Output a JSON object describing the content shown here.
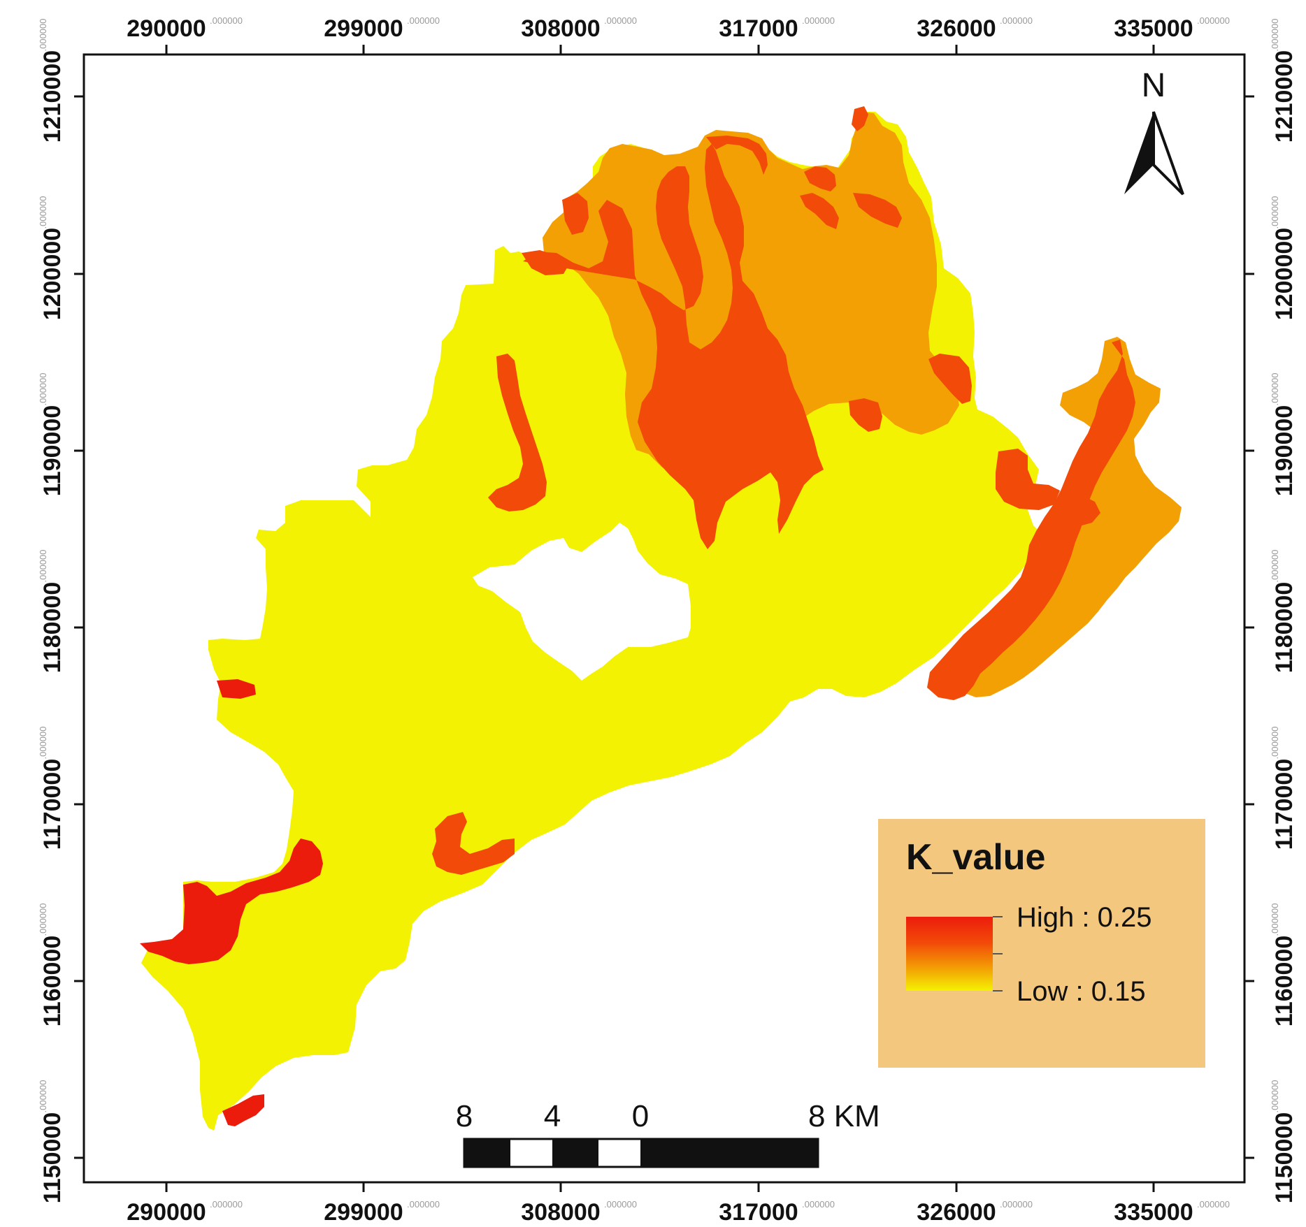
{
  "colors": {
    "high": "#ec1c0c",
    "high_mid": "#f24a08",
    "mid": "#f3a004",
    "low": "#f4f203",
    "legend_bg": "#f3c77d",
    "frame": "#111111"
  },
  "axes": {
    "top": {
      "major": [
        "290000",
        "299000",
        "308000",
        "317000",
        "326000",
        "335000"
      ],
      "minor": [
        ".000000",
        ".000000",
        ".000000",
        ".000000",
        ".000000",
        ".000000"
      ]
    },
    "bottom": {
      "major": [
        "290000",
        "299000",
        "308000",
        "317000",
        "326000",
        "335000"
      ],
      "minor": [
        ".000000",
        ".000000",
        ".000000",
        ".000000",
        ".000000",
        ".000000"
      ]
    },
    "left": {
      "major": [
        "1210000",
        "1200000",
        "1190000",
        "1180000",
        "1170000",
        "1160000",
        "1150000"
      ],
      "minor": [
        ".000000",
        ".000000",
        ".000000",
        ".000000",
        ".000000",
        ".000000",
        ".000000"
      ]
    },
    "right": {
      "major": [
        "1210000",
        "1200000",
        "1190000",
        "1180000",
        "1170000",
        "1160000",
        "1150000"
      ],
      "minor": [
        ".000000",
        ".000000",
        ".000000",
        ".000000",
        ".000000",
        ".000000",
        ".000000"
      ]
    }
  },
  "north_arrow": {
    "label": "N",
    "icon": "north-arrow-icon"
  },
  "legend": {
    "title": "K_value",
    "high_label": "High : 0.25",
    "low_label": "Low : 0.15"
  },
  "scale_bar": {
    "labels": [
      "8",
      "4",
      "0",
      "8 KM"
    ]
  }
}
